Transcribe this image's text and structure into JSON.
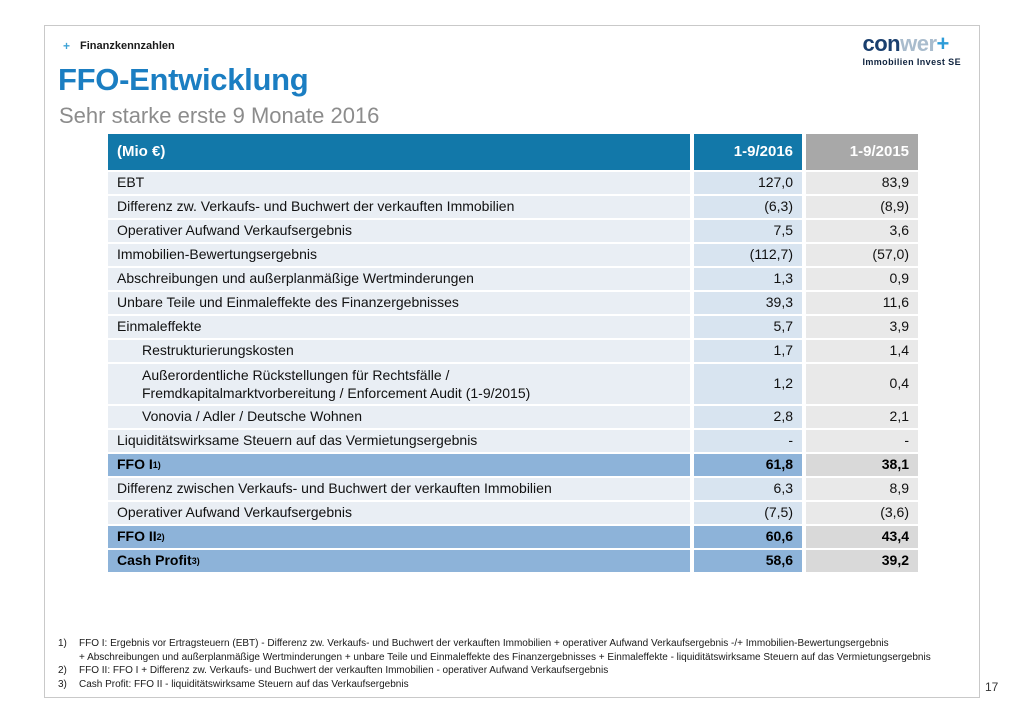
{
  "slide": {
    "eyebrow": {
      "bullet": "+",
      "label": "Finanzkennzahlen"
    },
    "logo": {
      "part1": "con",
      "part2": "wer",
      "plus": "+",
      "subtitle": "Immobilien Invest SE"
    },
    "title": "FFO-Entwicklung",
    "subtitle": "Sehr starke erste 9 Monate 2016",
    "page_number": "17"
  },
  "table": {
    "header": {
      "col_label": "(Mio €)",
      "col_2016": "1-9/2016",
      "col_2015": "1-9/2015"
    },
    "rows": [
      {
        "label": "EBT",
        "v2016": "127,0",
        "v2015": "83,9"
      },
      {
        "label": "Differenz zw. Verkaufs- und Buchwert der verkauften Immobilien",
        "v2016": "(6,3)",
        "v2015": "(8,9)"
      },
      {
        "label": "Operativer Aufwand Verkaufsergebnis",
        "v2016": "7,5",
        "v2015": "3,6"
      },
      {
        "label": "Immobilien-Bewertungsergebnis",
        "v2016": "(112,7)",
        "v2015": "(57,0)"
      },
      {
        "label": "Abschreibungen und außerplanmäßige Wertminderungen",
        "v2016": "1,3",
        "v2015": "0,9"
      },
      {
        "label": "Unbare Teile und Einmaleffekte des Finanzergebnisses",
        "v2016": "39,3",
        "v2015": "11,6"
      },
      {
        "label": "Einmaleffekte",
        "v2016": "5,7",
        "v2015": "3,9"
      },
      {
        "label": "Restrukturierungskosten",
        "indent": true,
        "v2016": "1,7",
        "v2015": "1,4"
      },
      {
        "label": "Außerordentliche Rückstellungen für Rechtsfälle /\nFremdkapitalmarktvorbereitung / Enforcement Audit (1-9/2015)",
        "indent": true,
        "multiline": true,
        "v2016": "1,2",
        "v2015": "0,4"
      },
      {
        "label": "Vonovia / Adler / Deutsche Wohnen",
        "indent": true,
        "v2016": "2,8",
        "v2015": "2,1"
      },
      {
        "label": "Liquiditätswirksame Steuern auf das Vermietungsergebnis",
        "v2016": "-",
        "v2015": "-"
      },
      {
        "label": "FFO I",
        "sup": "1)",
        "highlight": true,
        "v2016": "61,8",
        "v2015": "38,1"
      },
      {
        "label": "Differenz zwischen Verkaufs- und Buchwert der verkauften Immobilien",
        "v2016": "6,3",
        "v2015": "8,9"
      },
      {
        "label": "Operativer Aufwand Verkaufsergebnis",
        "v2016": "(7,5)",
        "v2015": "(3,6)"
      },
      {
        "label": "FFO II",
        "sup": "2)",
        "highlight": true,
        "v2016": "60,6",
        "v2015": "43,4"
      },
      {
        "label": "Cash Profit",
        "sup": "3)",
        "highlight": true,
        "v2016": "58,6",
        "v2015": "39,2"
      }
    ]
  },
  "footnotes": [
    {
      "num": "1)",
      "text": "FFO I: Ergebnis vor Ertragsteuern (EBT) - Differenz zw. Verkaufs- und Buchwert der verkauften Immobilien + operativer Aufwand Verkaufsergebnis  -/+ Immobilien-Bewertungsergebnis\n+ Abschreibungen und außerplanmäßige Wertminderungen + unbare Teile und Einmaleffekte des Finanzergebnisses + Einmaleffekte - liquiditätswirksame Steuern auf das  Vermietungsergebnis"
    },
    {
      "num": "2)",
      "text": "FFO II: FFO I + Differenz zw. Verkaufs- und Buchwert der verkauften Immobilien - operativer Aufwand Verkaufsergebnis"
    },
    {
      "num": "3)",
      "text": "Cash Profit: FFO II - liquiditätswirksame Steuern auf das Verkaufsergebnis"
    }
  ],
  "colors": {
    "header_blue": "#1278a9",
    "header_gray": "#a8a8a8",
    "label_cell_bg": "#e9eef4",
    "value_2016_bg": "#d8e4f0",
    "value_2015_bg": "#e9e9e9",
    "highlight_blue": "#8db3d9",
    "highlight_gray": "#d9d9d9",
    "title_blue": "#1b7ec2",
    "subtitle_gray": "#8c8c8c",
    "accent_plus_blue": "#3fa3d6",
    "logo_dark_blue": "#1a3f6e",
    "logo_light_blue": "#a9bccd",
    "logo_plus_blue": "#2d9cd8",
    "slide_border": "#c9c9c9"
  }
}
